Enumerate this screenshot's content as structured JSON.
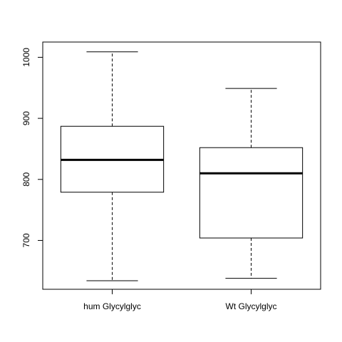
{
  "chart_data": {
    "type": "boxplot",
    "title": "",
    "xlabel": "",
    "ylabel": "",
    "categories": [
      "hum Glycylglyc",
      "Wt Glycylglyc"
    ],
    "boxes": [
      {
        "category": "hum Glycylglyc",
        "min": 634,
        "q1": 779,
        "median": 832,
        "q3": 887,
        "max": 1009
      },
      {
        "category": "Wt Glycylglyc",
        "min": 638,
        "q1": 704,
        "median": 810,
        "q3": 852,
        "max": 949
      }
    ],
    "yticks": [
      700,
      800,
      900,
      1000
    ],
    "ylim": [
      620,
      1025
    ],
    "grid": false,
    "colors": {
      "box_border": "#000000",
      "box_fill": "#ffffff",
      "median": "#000000",
      "whisker": "#000000"
    }
  }
}
